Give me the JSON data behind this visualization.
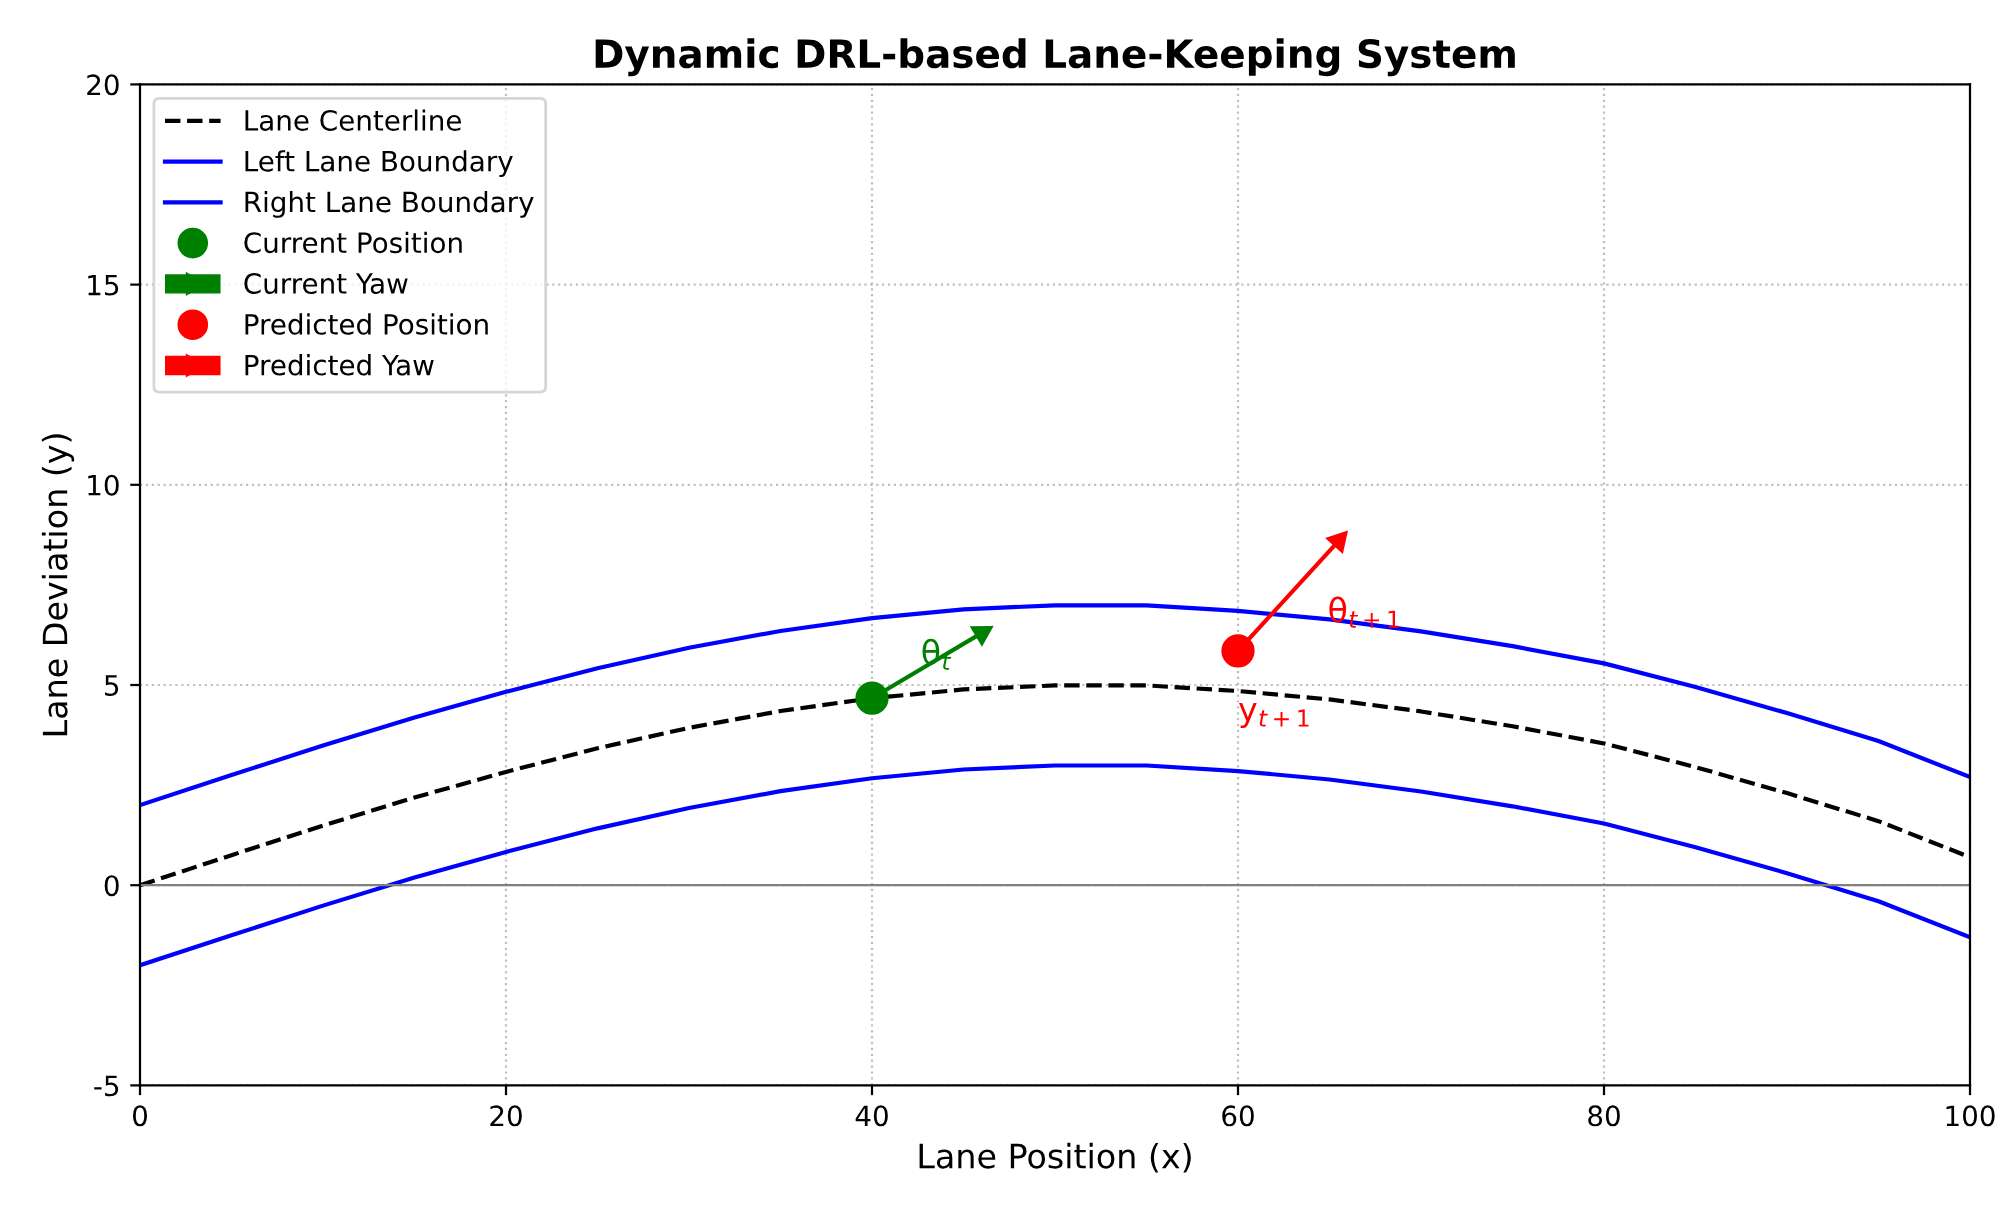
{
  "chart_data": {
    "type": "line",
    "title": "Dynamic DRL-based Lane-Keeping System",
    "xlabel": "Lane Position (x)",
    "ylabel": "Lane Deviation (y)",
    "xlim": [
      0,
      100
    ],
    "ylim": [
      -5,
      20
    ],
    "xticks": [
      0,
      20,
      40,
      60,
      80,
      100
    ],
    "yticks": [
      -5,
      0,
      5,
      10,
      15,
      20
    ],
    "grid": true,
    "legend": "top left",
    "series": [
      {
        "name": "Lane Centerline",
        "color": "#000000",
        "line_style": "dashed",
        "x": [
          0,
          5,
          10,
          15,
          20,
          25,
          30,
          35,
          40,
          45,
          50,
          55,
          60,
          65,
          70,
          75,
          80,
          85,
          90,
          95,
          100
        ],
        "values": [
          0,
          0.75,
          1.49,
          2.19,
          2.83,
          3.42,
          3.93,
          4.35,
          4.67,
          4.89,
          4.99,
          4.99,
          4.85,
          4.64,
          4.34,
          3.97,
          3.54,
          2.95,
          2.3,
          1.6,
          0.7
        ]
      },
      {
        "name": "Left Lane Boundary",
        "color": "#0000ff",
        "line_style": "solid",
        "x": [
          0,
          5,
          10,
          15,
          20,
          25,
          30,
          35,
          40,
          45,
          50,
          55,
          60,
          65,
          70,
          75,
          80,
          85,
          90,
          95,
          100
        ],
        "values": [
          2,
          2.75,
          3.49,
          4.19,
          4.83,
          5.42,
          5.93,
          6.35,
          6.67,
          6.89,
          6.99,
          6.99,
          6.85,
          6.64,
          6.34,
          5.97,
          5.54,
          4.95,
          4.3,
          3.6,
          2.7
        ]
      },
      {
        "name": "Right Lane Boundary",
        "color": "#0000ff",
        "line_style": "solid",
        "x": [
          0,
          5,
          10,
          15,
          20,
          25,
          30,
          35,
          40,
          45,
          50,
          55,
          60,
          65,
          70,
          75,
          80,
          85,
          90,
          95,
          100
        ],
        "values": [
          -2,
          -1.25,
          -0.51,
          0.19,
          0.83,
          1.42,
          1.93,
          2.35,
          2.67,
          2.89,
          2.99,
          2.99,
          2.85,
          2.64,
          2.34,
          1.97,
          1.54,
          0.95,
          0.3,
          -0.4,
          -1.3
        ]
      },
      {
        "name": "Current Position",
        "type": "scatter",
        "marker": "circle",
        "color": "#008000",
        "x": [
          40
        ],
        "values": [
          4.67
        ]
      },
      {
        "name": "Current Yaw",
        "type": "line",
        "marker": "triangle",
        "color": "#008000",
        "x": [
          40,
          46
        ],
        "values": [
          4.67,
          6.3
        ]
      },
      {
        "name": "Predicted Position",
        "type": "scatter",
        "marker": "circle",
        "color": "#ff0000",
        "x": [
          60
        ],
        "values": [
          5.85
        ]
      },
      {
        "name": "Predicted Yaw",
        "type": "line",
        "marker": "triangle",
        "color": "#ff0000",
        "x": [
          60,
          65.5
        ],
        "values": [
          5.85,
          8.6
        ]
      }
    ],
    "ref_lines": [
      {
        "axis": "y",
        "value": 0,
        "color": "#808080"
      }
    ],
    "annotations": [
      {
        "text": "θ$_{t}$",
        "x": 46,
        "y": 6.3
      },
      {
        "text": "θ$_{t+1}$",
        "x": 65.5,
        "y": 8.6
      },
      {
        "text": "y$_{t+1}$",
        "x": 60,
        "y": 5.85
      }
    ]
  }
}
